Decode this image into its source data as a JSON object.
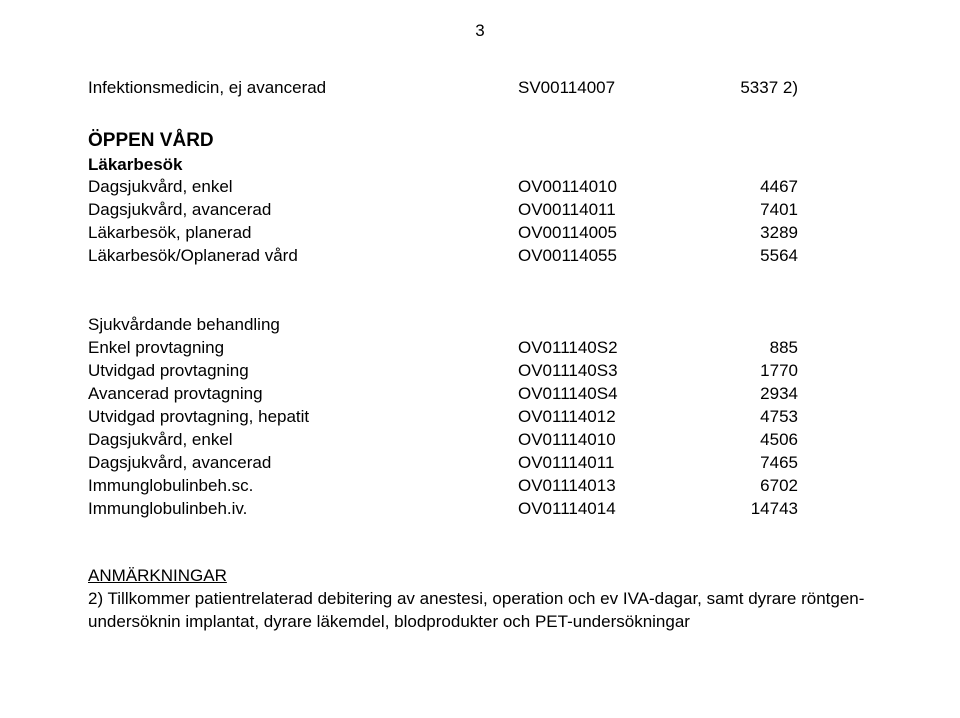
{
  "page_number": "3",
  "top_row": {
    "label": "Infektionsmedicin, ej avancerad",
    "code": "SV00114007",
    "value": "5337 2)"
  },
  "sections": {
    "open_care": {
      "title": "ÖPPEN VÅRD",
      "group_title": "Läkarbesök",
      "rows": [
        {
          "label": "Dagsjukvård, enkel",
          "code": "OV00114010",
          "value": "4467"
        },
        {
          "label": "Dagsjukvård, avancerad",
          "code": "OV00114011",
          "value": "7401"
        },
        {
          "label": "Läkarbesök, planerad",
          "code": "OV00114005",
          "value": "3289"
        },
        {
          "label": "Läkarbesök/Oplanerad vård",
          "code": "OV00114055",
          "value": "5564"
        }
      ]
    },
    "treatment": {
      "title": "Sjukvårdande behandling",
      "rows": [
        {
          "label": "Enkel provtagning",
          "code": "OV011140S2",
          "value": "885"
        },
        {
          "label": "Utvidgad provtagning",
          "code": "OV011140S3",
          "value": "1770"
        },
        {
          "label": "Avancerad provtagning",
          "code": "OV011140S4",
          "value": "2934"
        },
        {
          "label": "Utvidgad provtagning, hepatit",
          "code": "OV01114012",
          "value": "4753"
        },
        {
          "label": "Dagsjukvård, enkel",
          "code": "OV01114010",
          "value": "4506"
        },
        {
          "label": "Dagsjukvård, avancerad",
          "code": "OV01114011",
          "value": "7465"
        },
        {
          "label": "Immunglobulinbeh.sc.",
          "code": "OV01114013",
          "value": "6702"
        },
        {
          "label": "Immunglobulinbeh.iv.",
          "code": "OV01114014",
          "value": "14743"
        }
      ]
    }
  },
  "notes": {
    "title": "ANMÄRKNINGAR",
    "body": "2) Tillkommer patientrelaterad debitering av anestesi, operation och ev IVA-dagar, samt dyrare röntgen-undersöknin implantat, dyrare läkemdel, blodprodukter och PET-undersökningar"
  },
  "style": {
    "text_color": "#000000",
    "background_color": "#ffffff",
    "base_font_size_pt": 13,
    "section_font_size_pt": 14,
    "font_family": "Arial"
  }
}
